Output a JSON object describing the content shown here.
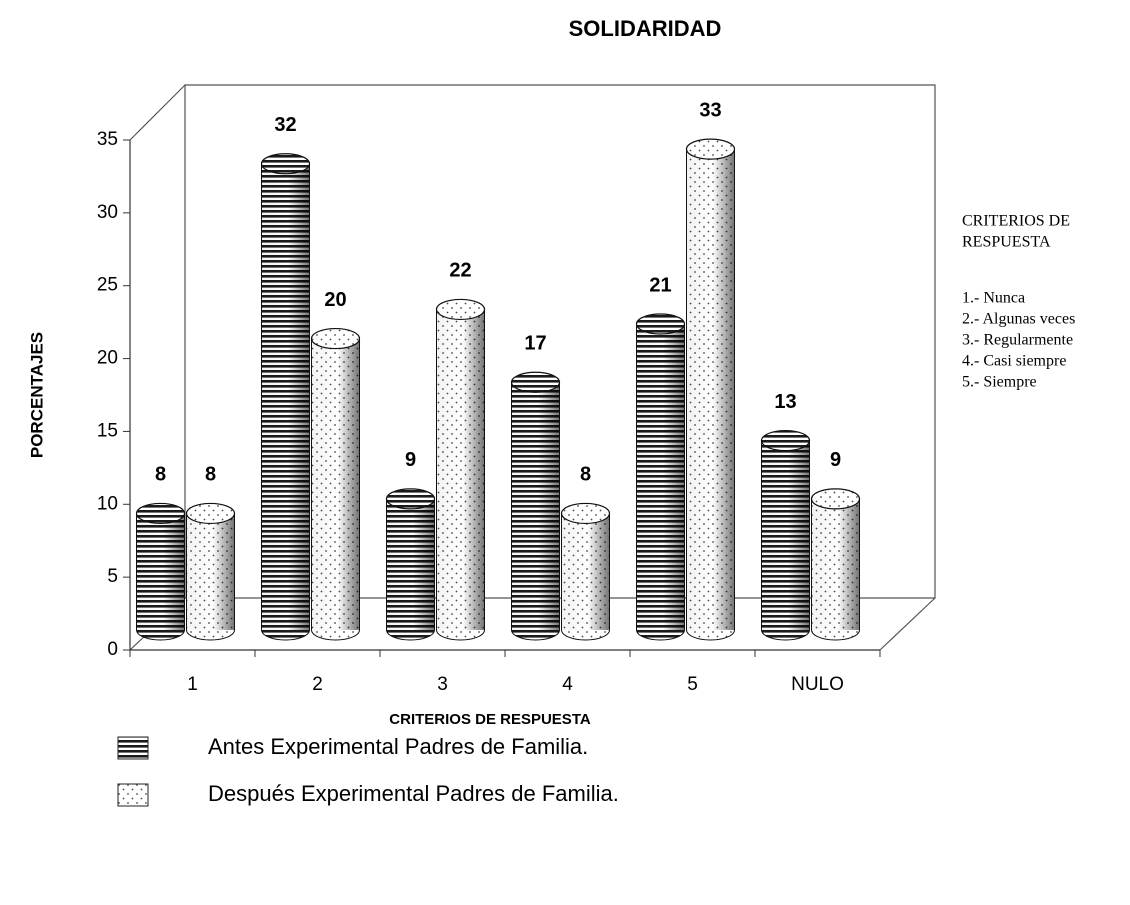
{
  "chart_data": {
    "type": "bar3d",
    "title": "SOLIDARIDAD",
    "xlabel": "CRITERIOS DE RESPUESTA",
    "ylabel": "PORCENTAJES",
    "categories": [
      "1",
      "2",
      "3",
      "4",
      "5",
      "NULO"
    ],
    "series": [
      {
        "name": "Antes Experimental Padres de Familia.",
        "color": "#1a1a1a",
        "pattern": "stripes",
        "values": [
          8,
          32,
          9,
          17,
          21,
          13
        ]
      },
      {
        "name": "Después Experimental Padres de Familia.",
        "color": "#4a4a4a",
        "pattern": "dots",
        "values": [
          8,
          20,
          22,
          8,
          33,
          9
        ]
      }
    ],
    "ylim": [
      0,
      35
    ],
    "yticks": [
      0,
      5,
      10,
      15,
      20,
      25,
      30,
      35
    ],
    "key_title": [
      "CRITERIOS DE",
      "RESPUESTA"
    ],
    "key_items": [
      "1.- Nunca",
      "2.- Algunas veces",
      "3.- Regularmente",
      "4.- Casi siempre",
      "5.- Siempre"
    ]
  }
}
